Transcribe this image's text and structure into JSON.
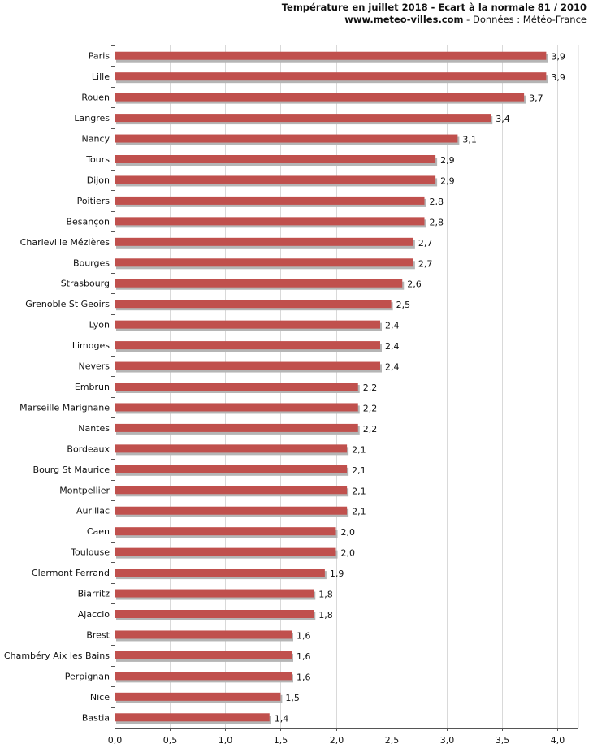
{
  "header": {
    "title": "Température en juillet 2018 - Ecart à la normale 81 / 2010",
    "site": "www.meteo-villes.com",
    "source": " - Données : Météo-France"
  },
  "chart_data": {
    "type": "bar",
    "orientation": "horizontal",
    "categories": [
      "Paris",
      "Lille",
      "Rouen",
      "Langres",
      "Nancy",
      "Tours",
      "Dijon",
      "Poitiers",
      "Besançon",
      "Charleville Mézières",
      "Bourges",
      "Strasbourg",
      "Grenoble St Geoirs",
      "Lyon",
      "Limoges",
      "Nevers",
      "Embrun",
      "Marseille Marignane",
      "Nantes",
      "Bordeaux",
      "Bourg St Maurice",
      "Montpellier",
      "Aurillac",
      "Caen",
      "Toulouse",
      "Clermont Ferrand",
      "Biarritz",
      "Ajaccio",
      "Brest",
      "Chambéry Aix les Bains",
      "Perpignan",
      "Nice",
      "Bastia"
    ],
    "values": [
      3.9,
      3.9,
      3.7,
      3.4,
      3.1,
      2.9,
      2.9,
      2.8,
      2.8,
      2.7,
      2.7,
      2.6,
      2.5,
      2.4,
      2.4,
      2.4,
      2.2,
      2.2,
      2.2,
      2.1,
      2.1,
      2.1,
      2.1,
      2.0,
      2.0,
      1.9,
      1.8,
      1.8,
      1.6,
      1.6,
      1.6,
      1.5,
      1.4
    ],
    "value_labels": [
      "3,9",
      "3,9",
      "3,7",
      "3,4",
      "3,1",
      "2,9",
      "2,9",
      "2,8",
      "2,8",
      "2,7",
      "2,7",
      "2,6",
      "2,5",
      "2,4",
      "2,4",
      "2,4",
      "2,2",
      "2,2",
      "2,2",
      "2,1",
      "2,1",
      "2,1",
      "2,1",
      "2,0",
      "2,0",
      "1,9",
      "1,8",
      "1,8",
      "1,6",
      "1,6",
      "1,6",
      "1,5",
      "1,4"
    ],
    "xlim": [
      0,
      4.0
    ],
    "x_ticks": [
      0,
      0.5,
      1.0,
      1.5,
      2.0,
      2.5,
      3.0,
      3.5,
      4.0
    ],
    "x_tick_labels": [
      "0,0",
      "0,5",
      "1,0",
      "1,5",
      "2,0",
      "2,5",
      "3,0",
      "3,5",
      "4,0"
    ],
    "grid": "vertical",
    "colors": {
      "bar": "#c0504d",
      "bar_shadow": "#b5b5b5",
      "grid": "#d9d9d9",
      "axis": "#555555"
    }
  }
}
